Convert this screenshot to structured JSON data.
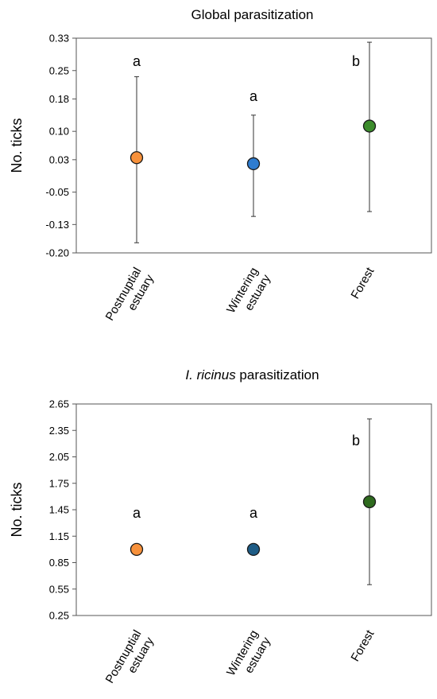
{
  "chart_data": [
    {
      "type": "scatter",
      "title": "Global parasitization",
      "title_italic": "",
      "title_rest": "",
      "ylabel": "No. ticks",
      "ylim": [
        -0.2,
        0.33
      ],
      "yticks": [
        "0.33",
        "0.25",
        "0.18",
        "0.10",
        "0.03",
        "-0.05",
        "-0.13",
        "-0.20"
      ],
      "ytick_values": [
        0.33,
        0.25,
        0.18,
        0.1,
        0.03,
        -0.05,
        -0.13,
        -0.2
      ],
      "grid": false,
      "points": [
        {
          "category_line1": "Postnuptial",
          "category_line2": "estuary",
          "value": 0.035,
          "err_low": -0.175,
          "err_high": 0.235,
          "group": "a",
          "color": "#F7913B"
        },
        {
          "category_line1": "Wintering",
          "category_line2": "estuary",
          "value": 0.02,
          "err_low": -0.11,
          "err_high": 0.14,
          "group": "a",
          "color": "#2E7CD0"
        },
        {
          "category_line1": "Forest",
          "category_line2": "",
          "value": 0.113,
          "err_low": -0.098,
          "err_high": 0.32,
          "group": "b",
          "color": "#3C8C2C"
        }
      ]
    },
    {
      "type": "scatter",
      "title": "",
      "title_italic": "I. ricinus",
      "title_rest": " parasitization",
      "ylabel": "No. ticks",
      "ylim": [
        0.25,
        2.65
      ],
      "yticks": [
        "2.65",
        "2.35",
        "2.05",
        "1.75",
        "1.45",
        "1.15",
        "0.85",
        "0.55",
        "0.25"
      ],
      "ytick_values": [
        2.65,
        2.35,
        2.05,
        1.75,
        1.45,
        1.15,
        0.85,
        0.55,
        0.25
      ],
      "grid": false,
      "points": [
        {
          "category_line1": "Postnuptial",
          "category_line2": "estuary",
          "value": 1.0,
          "err_low": null,
          "err_high": null,
          "group": "a",
          "color": "#F7913B"
        },
        {
          "category_line1": "Wintering",
          "category_line2": "estuary",
          "value": 1.0,
          "err_low": null,
          "err_high": null,
          "group": "a",
          "color": "#1E5C86"
        },
        {
          "category_line1": "Forest",
          "category_line2": "",
          "value": 1.54,
          "err_low": 0.6,
          "err_high": 2.48,
          "group": "b",
          "color": "#2E6A1E"
        }
      ]
    }
  ]
}
